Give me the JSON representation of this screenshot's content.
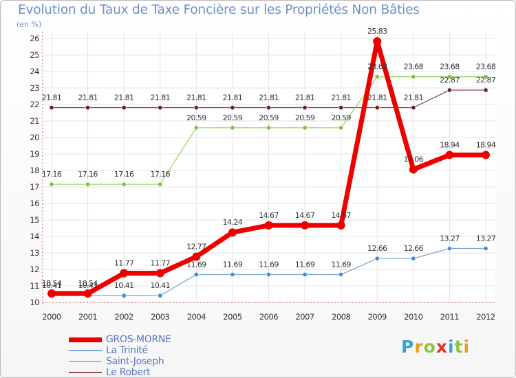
{
  "title": "Evolution du Taux de Taxe Foncière sur les Propriétés Non Bâties",
  "unit": "(en %)",
  "logo": {
    "text": "Proxiti",
    "colors": [
      "#3aa0d8",
      "#f29a1c",
      "#8cc63f",
      "#e8312e",
      "#3aa0d8",
      "#8cc63f",
      "#f29a1c"
    ]
  },
  "chart_data": {
    "type": "line",
    "title": "Evolution du Taux de Taxe Foncière sur les Propriétés Non Bâties",
    "ylabel": "(en %)",
    "xlabel": "",
    "ylim": [
      10,
      26
    ],
    "yticks": [
      "10",
      "11",
      "12",
      "13",
      "14",
      "15",
      "16",
      "17",
      "18",
      "19",
      "20",
      "21",
      "22",
      "23",
      "24",
      "25",
      "26"
    ],
    "x": [
      "2000",
      "2001",
      "2002",
      "2003",
      "2004",
      "2005",
      "2006",
      "2007",
      "2008",
      "2009",
      "2010",
      "2011",
      "2012"
    ],
    "series": [
      {
        "name": "GROS-MORNE",
        "color": "#ee0000",
        "point_color": "#ee0000",
        "values": [
          10.54,
          10.54,
          11.77,
          11.77,
          12.77,
          14.24,
          14.67,
          14.67,
          14.67,
          25.83,
          18.06,
          18.94,
          18.94
        ],
        "labels": [
          "10.54",
          "10.54",
          "11.77",
          "11.77",
          "12.77",
          "14.24",
          "14.67",
          "14.67",
          "14.67",
          "25.83",
          "18.06",
          "18.94",
          "18.94"
        ]
      },
      {
        "name": "La Trinité",
        "color": "#7aa6cf",
        "point_color": "#3f8fd6",
        "values": [
          10.41,
          10.41,
          10.41,
          10.41,
          11.69,
          11.69,
          11.69,
          11.69,
          11.69,
          12.66,
          12.66,
          13.27,
          13.27
        ],
        "labels": [
          "10.41",
          "10.41",
          "10.41",
          "10.41",
          "11.69",
          "11.69",
          "11.69",
          "11.69",
          "11.69",
          "12.66",
          "12.66",
          "13.27",
          "13.27"
        ]
      },
      {
        "name": "Saint-Joseph",
        "color": "#9ad466",
        "point_color": "#7cc43a",
        "values": [
          17.16,
          17.16,
          17.16,
          17.16,
          20.59,
          20.59,
          20.59,
          20.59,
          20.59,
          23.68,
          23.68,
          23.68,
          23.68
        ],
        "labels": [
          "17.16",
          "17.16",
          "17.16",
          "17.16",
          "20.59",
          "20.59",
          "20.59",
          "20.59",
          "20.59",
          "23.68",
          "23.68",
          "23.68",
          "23.68"
        ]
      },
      {
        "name": "Le Robert",
        "color": "#8a4a4a",
        "point_color": "#6b2323",
        "values": [
          21.81,
          21.81,
          21.81,
          21.81,
          21.81,
          21.81,
          21.81,
          21.81,
          21.81,
          21.81,
          21.81,
          22.87,
          22.87
        ],
        "labels": [
          "21.81",
          "21.81",
          "21.81",
          "21.81",
          "21.81",
          "21.81",
          "21.81",
          "21.81",
          "21.81",
          "21.81",
          "21.81",
          "22.87",
          "22.87"
        ]
      }
    ]
  }
}
